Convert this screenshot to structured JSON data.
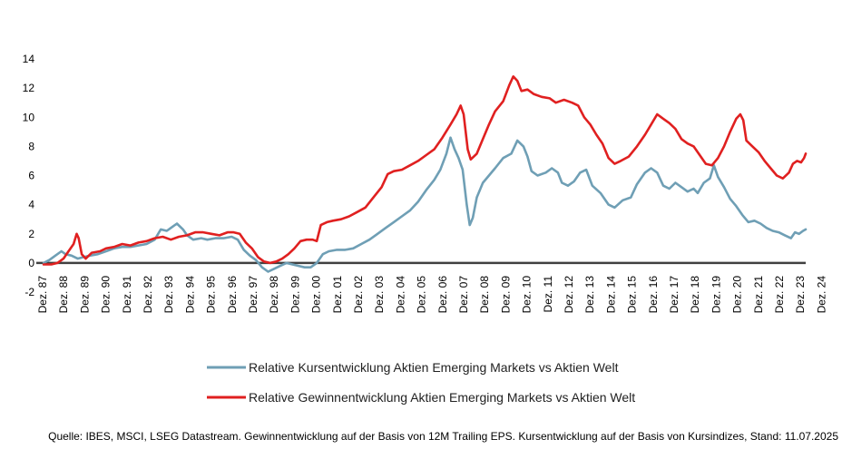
{
  "chart_data": {
    "type": "line",
    "title": "",
    "xlabel": "",
    "ylabel": "",
    "ylim": [
      -2,
      14
    ],
    "yticks": [
      -2,
      0,
      2,
      4,
      6,
      8,
      10,
      12,
      14
    ],
    "grid": false,
    "xrange": [
      1987.917,
      2025.53
    ],
    "xtick_labels": [
      "Dez. 87",
      "Dez. 88",
      "Dez. 89",
      "Dez. 90",
      "Dez. 91",
      "Dez. 92",
      "Dez. 93",
      "Dez. 94",
      "Dez. 95",
      "Dez. 96",
      "Dez. 97",
      "Dez. 98",
      "Dez. 99",
      "Dez. 00",
      "Dez. 01",
      "Dez. 02",
      "Dez. 03",
      "Dez. 04",
      "Dez. 05",
      "Dez. 06",
      "Dez. 07",
      "Dez. 08",
      "Dez. 09",
      "Dez. 10",
      "Dez. 11",
      "Dez. 12",
      "Dez. 13",
      "Dez. 14",
      "Dez. 15",
      "Dez. 16",
      "Dez. 17",
      "Dez. 18",
      "Dez. 19",
      "Dez. 20",
      "Dez. 21",
      "Dez. 22",
      "Dez. 23",
      "Dez. 24"
    ],
    "legend_position": "bottom",
    "series": [
      {
        "name": "Relative Kursentwicklung Aktien Emerging Markets vs Aktien Welt",
        "color": "#6f9fb5",
        "points": [
          [
            1987.92,
            0.0
          ],
          [
            1988.2,
            0.2
          ],
          [
            1988.5,
            0.5
          ],
          [
            1988.8,
            0.8
          ],
          [
            1989.0,
            0.6
          ],
          [
            1989.3,
            0.5
          ],
          [
            1989.6,
            0.3
          ],
          [
            1989.9,
            0.4
          ],
          [
            1990.2,
            0.5
          ],
          [
            1990.6,
            0.6
          ],
          [
            1991.0,
            0.8
          ],
          [
            1991.4,
            1.0
          ],
          [
            1991.8,
            1.1
          ],
          [
            1992.2,
            1.1
          ],
          [
            1992.6,
            1.2
          ],
          [
            1993.0,
            1.3
          ],
          [
            1993.4,
            1.6
          ],
          [
            1993.7,
            2.3
          ],
          [
            1994.0,
            2.2
          ],
          [
            1994.3,
            2.5
          ],
          [
            1994.5,
            2.7
          ],
          [
            1994.8,
            2.3
          ],
          [
            1995.0,
            1.9
          ],
          [
            1995.3,
            1.6
          ],
          [
            1995.7,
            1.7
          ],
          [
            1996.0,
            1.6
          ],
          [
            1996.4,
            1.7
          ],
          [
            1996.8,
            1.7
          ],
          [
            1997.2,
            1.8
          ],
          [
            1997.5,
            1.6
          ],
          [
            1997.8,
            0.9
          ],
          [
            1998.1,
            0.5
          ],
          [
            1998.4,
            0.2
          ],
          [
            1998.7,
            -0.3
          ],
          [
            1999.0,
            -0.6
          ],
          [
            1999.3,
            -0.4
          ],
          [
            1999.6,
            -0.2
          ],
          [
            1999.9,
            0.0
          ],
          [
            2000.2,
            -0.1
          ],
          [
            2000.5,
            -0.2
          ],
          [
            2000.8,
            -0.3
          ],
          [
            2001.1,
            -0.3
          ],
          [
            2001.4,
            0.0
          ],
          [
            2001.7,
            0.6
          ],
          [
            2002.0,
            0.8
          ],
          [
            2002.4,
            0.9
          ],
          [
            2002.8,
            0.9
          ],
          [
            2003.2,
            1.0
          ],
          [
            2003.6,
            1.3
          ],
          [
            2004.0,
            1.6
          ],
          [
            2004.4,
            2.0
          ],
          [
            2004.8,
            2.4
          ],
          [
            2005.2,
            2.8
          ],
          [
            2005.6,
            3.2
          ],
          [
            2006.0,
            3.6
          ],
          [
            2006.4,
            4.2
          ],
          [
            2006.8,
            5.0
          ],
          [
            2007.2,
            5.7
          ],
          [
            2007.5,
            6.4
          ],
          [
            2007.8,
            7.5
          ],
          [
            2008.0,
            8.6
          ],
          [
            2008.2,
            7.8
          ],
          [
            2008.4,
            7.2
          ],
          [
            2008.6,
            6.4
          ],
          [
            2008.8,
            4.0
          ],
          [
            2008.95,
            2.6
          ],
          [
            2009.1,
            3.1
          ],
          [
            2009.3,
            4.5
          ],
          [
            2009.6,
            5.5
          ],
          [
            2009.9,
            6.0
          ],
          [
            2010.2,
            6.5
          ],
          [
            2010.6,
            7.2
          ],
          [
            2011.0,
            7.5
          ],
          [
            2011.3,
            8.4
          ],
          [
            2011.6,
            8.0
          ],
          [
            2011.8,
            7.3
          ],
          [
            2012.0,
            6.3
          ],
          [
            2012.3,
            6.0
          ],
          [
            2012.7,
            6.2
          ],
          [
            2013.0,
            6.5
          ],
          [
            2013.3,
            6.2
          ],
          [
            2013.5,
            5.5
          ],
          [
            2013.8,
            5.3
          ],
          [
            2014.1,
            5.6
          ],
          [
            2014.4,
            6.2
          ],
          [
            2014.7,
            6.4
          ],
          [
            2015.0,
            5.3
          ],
          [
            2015.4,
            4.8
          ],
          [
            2015.8,
            4.0
          ],
          [
            2016.1,
            3.8
          ],
          [
            2016.5,
            4.3
          ],
          [
            2016.9,
            4.5
          ],
          [
            2017.2,
            5.4
          ],
          [
            2017.6,
            6.2
          ],
          [
            2017.9,
            6.5
          ],
          [
            2018.2,
            6.2
          ],
          [
            2018.5,
            5.3
          ],
          [
            2018.8,
            5.1
          ],
          [
            2019.1,
            5.5
          ],
          [
            2019.4,
            5.2
          ],
          [
            2019.7,
            4.9
          ],
          [
            2020.0,
            5.1
          ],
          [
            2020.2,
            4.8
          ],
          [
            2020.5,
            5.5
          ],
          [
            2020.8,
            5.8
          ],
          [
            2021.0,
            6.7
          ],
          [
            2021.2,
            5.9
          ],
          [
            2021.5,
            5.2
          ],
          [
            2021.8,
            4.4
          ],
          [
            2022.1,
            3.9
          ],
          [
            2022.4,
            3.3
          ],
          [
            2022.7,
            2.8
          ],
          [
            2023.0,
            2.9
          ],
          [
            2023.3,
            2.7
          ],
          [
            2023.6,
            2.4
          ],
          [
            2023.9,
            2.2
          ],
          [
            2024.2,
            2.1
          ],
          [
            2024.5,
            1.9
          ],
          [
            2024.8,
            1.7
          ],
          [
            2025.0,
            2.1
          ],
          [
            2025.2,
            2.0
          ],
          [
            2025.4,
            2.2
          ],
          [
            2025.53,
            2.3
          ]
        ]
      },
      {
        "name": "Relative Gewinnentwicklung Aktien Emerging Markets vs Aktien Welt",
        "color": "#e02020",
        "points": [
          [
            1987.92,
            -0.1
          ],
          [
            1988.3,
            -0.1
          ],
          [
            1988.6,
            0.0
          ],
          [
            1988.9,
            0.3
          ],
          [
            1989.1,
            0.7
          ],
          [
            1989.4,
            1.3
          ],
          [
            1989.55,
            2.0
          ],
          [
            1989.65,
            1.7
          ],
          [
            1989.8,
            0.6
          ],
          [
            1990.0,
            0.3
          ],
          [
            1990.3,
            0.7
          ],
          [
            1990.7,
            0.8
          ],
          [
            1991.0,
            1.0
          ],
          [
            1991.4,
            1.1
          ],
          [
            1991.8,
            1.3
          ],
          [
            1992.2,
            1.2
          ],
          [
            1992.6,
            1.4
          ],
          [
            1993.0,
            1.5
          ],
          [
            1993.4,
            1.7
          ],
          [
            1993.8,
            1.8
          ],
          [
            1994.2,
            1.6
          ],
          [
            1994.6,
            1.8
          ],
          [
            1995.0,
            1.9
          ],
          [
            1995.4,
            2.1
          ],
          [
            1995.8,
            2.1
          ],
          [
            1996.2,
            2.0
          ],
          [
            1996.6,
            1.9
          ],
          [
            1997.0,
            2.1
          ],
          [
            1997.3,
            2.1
          ],
          [
            1997.6,
            2.0
          ],
          [
            1997.9,
            1.4
          ],
          [
            1998.2,
            1.0
          ],
          [
            1998.5,
            0.4
          ],
          [
            1998.8,
            0.1
          ],
          [
            1999.1,
            0.0
          ],
          [
            1999.4,
            0.1
          ],
          [
            1999.7,
            0.3
          ],
          [
            2000.0,
            0.6
          ],
          [
            2000.3,
            1.0
          ],
          [
            2000.6,
            1.5
          ],
          [
            2000.9,
            1.6
          ],
          [
            2001.2,
            1.6
          ],
          [
            2001.4,
            1.5
          ],
          [
            2001.6,
            2.6
          ],
          [
            2001.9,
            2.8
          ],
          [
            2002.2,
            2.9
          ],
          [
            2002.6,
            3.0
          ],
          [
            2003.0,
            3.2
          ],
          [
            2003.4,
            3.5
          ],
          [
            2003.8,
            3.8
          ],
          [
            2004.2,
            4.5
          ],
          [
            2004.6,
            5.2
          ],
          [
            2004.9,
            6.1
          ],
          [
            2005.2,
            6.3
          ],
          [
            2005.6,
            6.4
          ],
          [
            2006.0,
            6.7
          ],
          [
            2006.4,
            7.0
          ],
          [
            2006.8,
            7.4
          ],
          [
            2007.2,
            7.8
          ],
          [
            2007.6,
            8.6
          ],
          [
            2008.0,
            9.5
          ],
          [
            2008.3,
            10.2
          ],
          [
            2008.5,
            10.8
          ],
          [
            2008.65,
            10.2
          ],
          [
            2008.85,
            7.8
          ],
          [
            2009.0,
            7.1
          ],
          [
            2009.3,
            7.5
          ],
          [
            2009.6,
            8.5
          ],
          [
            2009.9,
            9.5
          ],
          [
            2010.2,
            10.4
          ],
          [
            2010.6,
            11.1
          ],
          [
            2010.9,
            12.2
          ],
          [
            2011.1,
            12.8
          ],
          [
            2011.3,
            12.5
          ],
          [
            2011.5,
            11.8
          ],
          [
            2011.8,
            11.9
          ],
          [
            2012.1,
            11.6
          ],
          [
            2012.5,
            11.4
          ],
          [
            2012.9,
            11.3
          ],
          [
            2013.2,
            11.0
          ],
          [
            2013.6,
            11.2
          ],
          [
            2014.0,
            11.0
          ],
          [
            2014.3,
            10.8
          ],
          [
            2014.6,
            10.0
          ],
          [
            2014.9,
            9.5
          ],
          [
            2015.2,
            8.8
          ],
          [
            2015.5,
            8.2
          ],
          [
            2015.8,
            7.2
          ],
          [
            2016.1,
            6.8
          ],
          [
            2016.4,
            7.0
          ],
          [
            2016.8,
            7.3
          ],
          [
            2017.2,
            8.0
          ],
          [
            2017.6,
            8.8
          ],
          [
            2017.9,
            9.5
          ],
          [
            2018.2,
            10.2
          ],
          [
            2018.5,
            9.9
          ],
          [
            2018.8,
            9.6
          ],
          [
            2019.1,
            9.2
          ],
          [
            2019.4,
            8.5
          ],
          [
            2019.7,
            8.2
          ],
          [
            2020.0,
            8.0
          ],
          [
            2020.3,
            7.4
          ],
          [
            2020.6,
            6.8
          ],
          [
            2020.9,
            6.7
          ],
          [
            2021.2,
            7.2
          ],
          [
            2021.5,
            8.0
          ],
          [
            2021.8,
            9.0
          ],
          [
            2022.1,
            9.9
          ],
          [
            2022.3,
            10.2
          ],
          [
            2022.45,
            9.8
          ],
          [
            2022.6,
            8.4
          ],
          [
            2022.9,
            8.0
          ],
          [
            2023.2,
            7.6
          ],
          [
            2023.5,
            7.0
          ],
          [
            2023.8,
            6.5
          ],
          [
            2024.1,
            6.0
          ],
          [
            2024.4,
            5.8
          ],
          [
            2024.7,
            6.2
          ],
          [
            2024.9,
            6.8
          ],
          [
            2025.1,
            7.0
          ],
          [
            2025.3,
            6.9
          ],
          [
            2025.45,
            7.2
          ],
          [
            2025.53,
            7.5
          ]
        ]
      }
    ],
    "source": "Quelle: IBES, MSCI, LSEG Datastream. Gewinnentwicklung auf der Basis von 12M Trailing EPS. Kursentwicklung auf der Basis von Kursindizes, Stand: 11.07.2025"
  }
}
